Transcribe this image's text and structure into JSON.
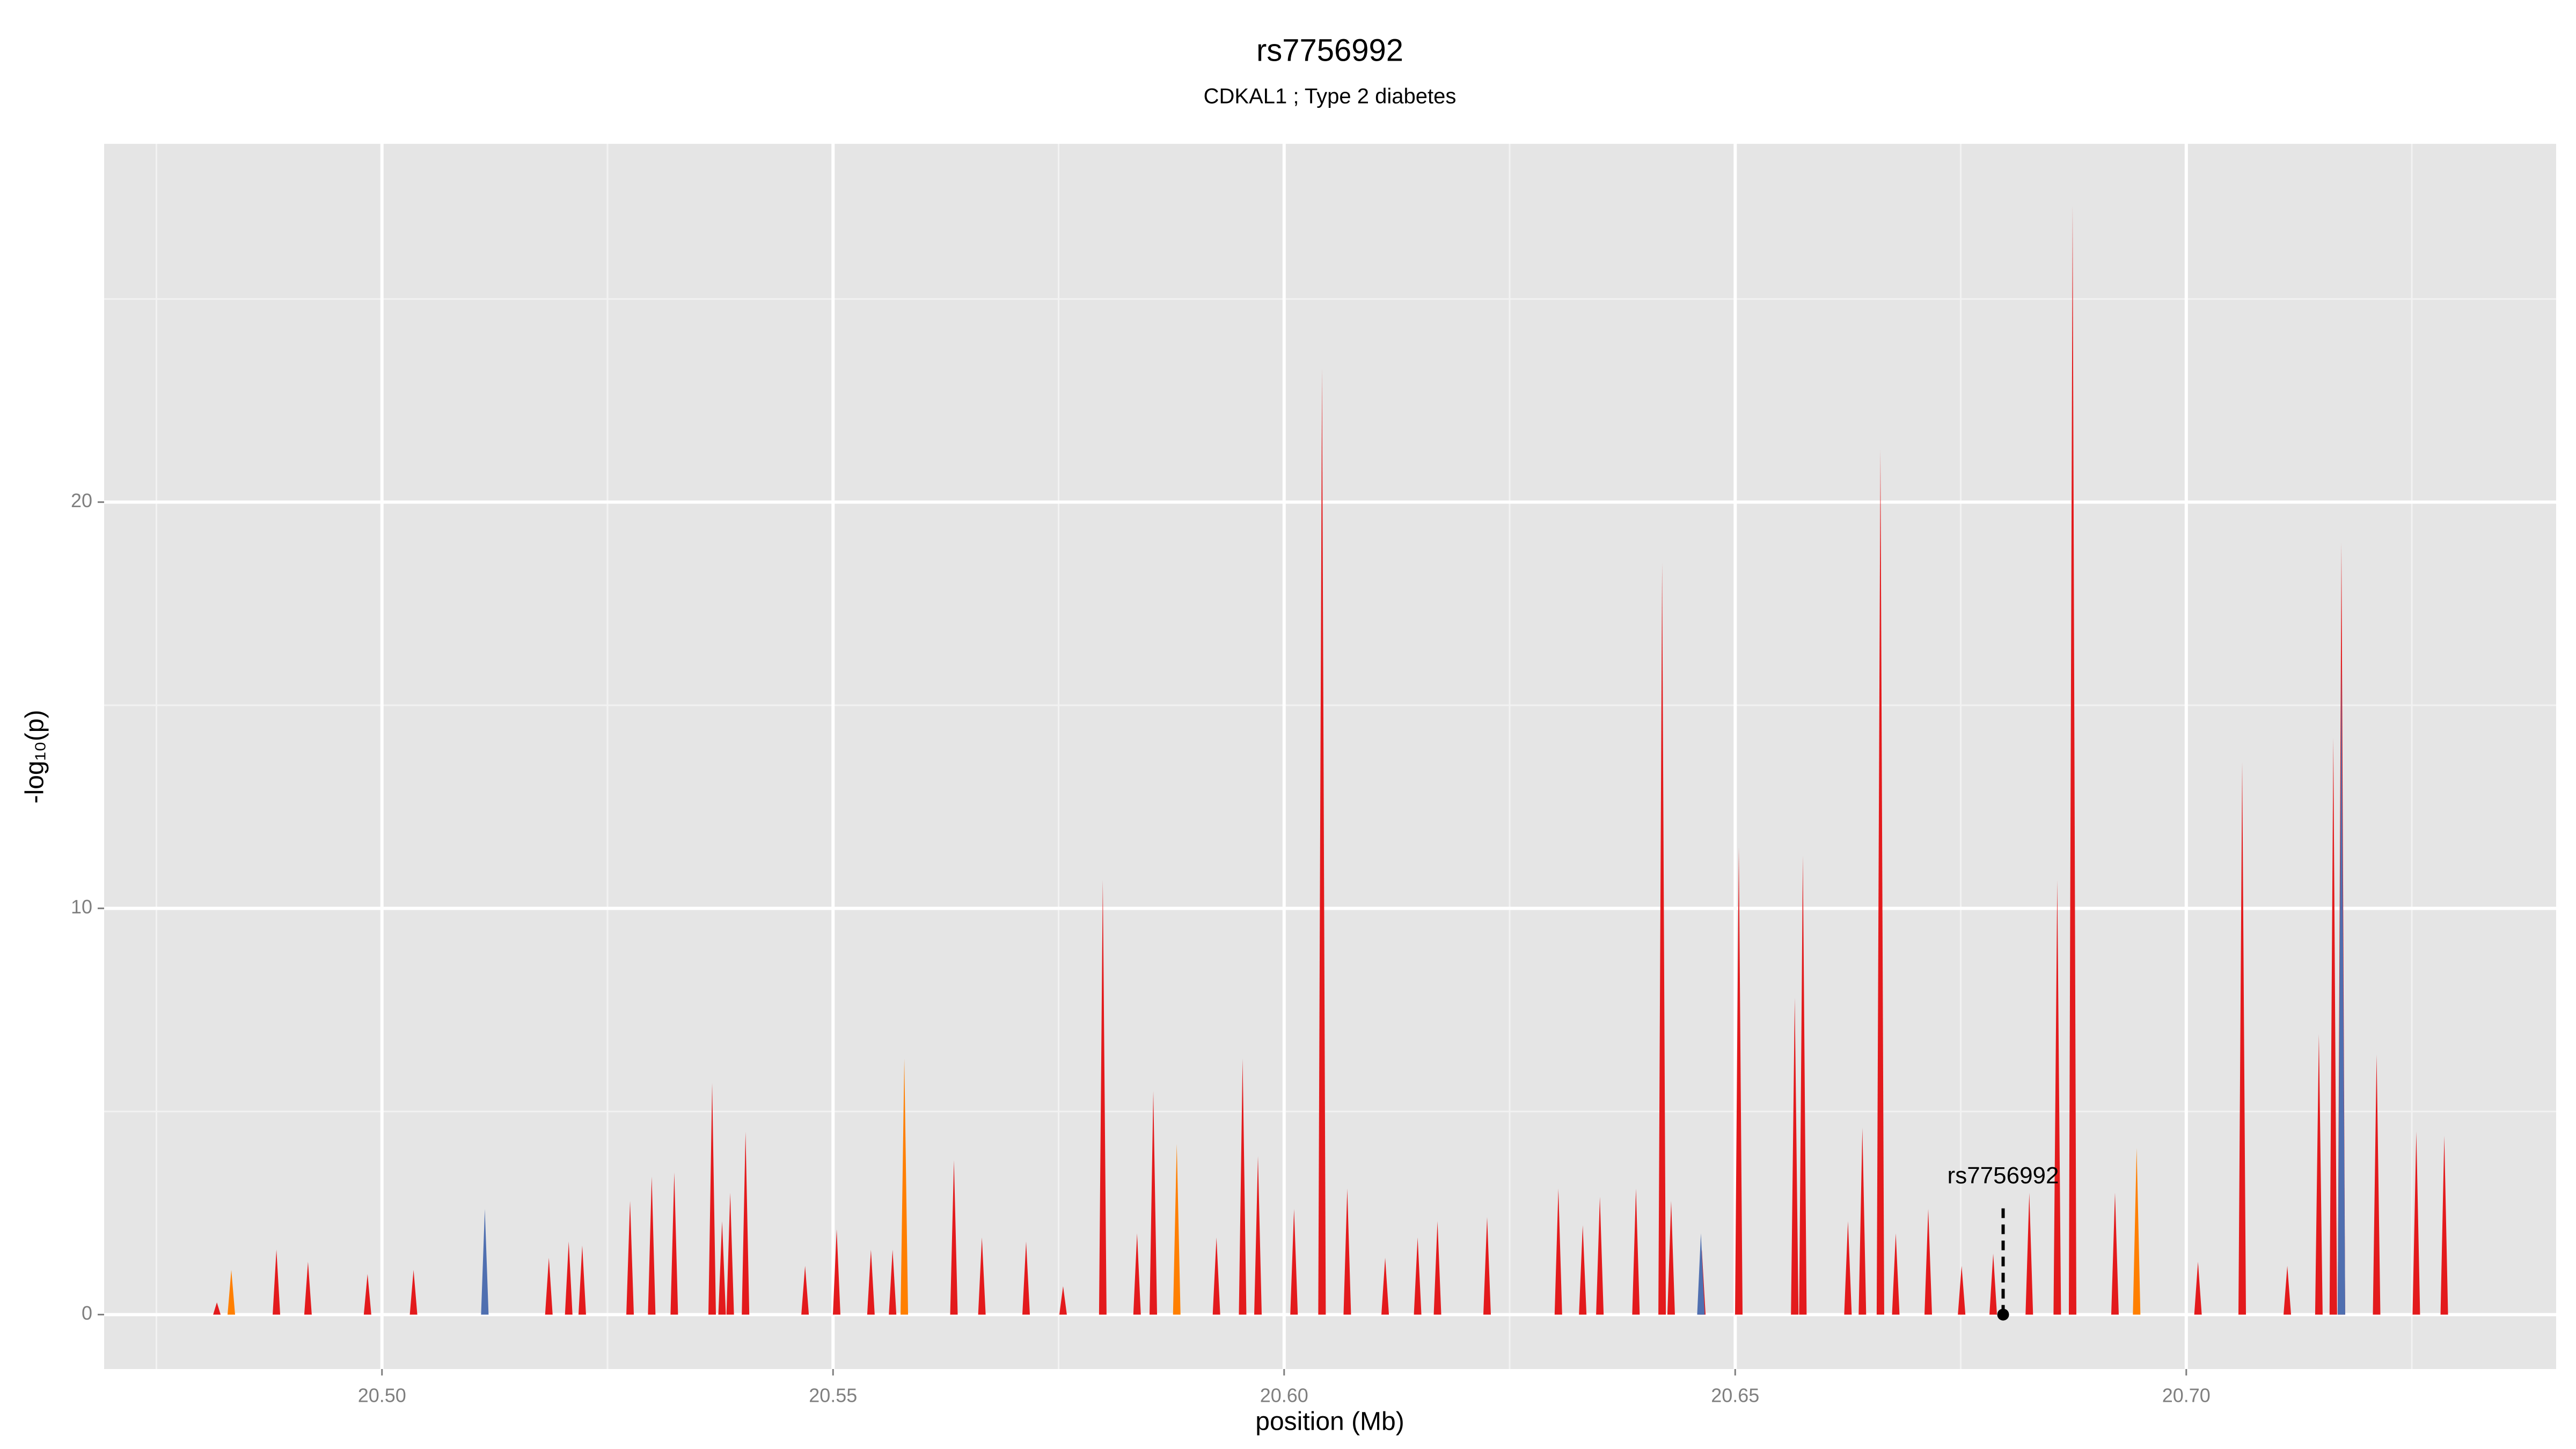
{
  "chart_data": {
    "type": "spike",
    "title": "rs7756992",
    "subtitle": "CDKAL1 ; Type 2 diabetes",
    "x_label": "position (Mb)",
    "y_label": "-log₁₀(p)",
    "xlim": [
      20.4692,
      20.741
    ],
    "ylim": [
      -1.34,
      28.82
    ],
    "xticks": [
      {
        "value": 20.5,
        "label": "20.50"
      },
      {
        "value": 20.55,
        "label": "20.55"
      },
      {
        "value": 20.6,
        "label": "20.60"
      },
      {
        "value": 20.65,
        "label": "20.65"
      },
      {
        "value": 20.7,
        "label": "20.70"
      }
    ],
    "yticks": [
      0,
      10,
      20
    ],
    "x_minor_ticks": [
      20.475,
      20.525,
      20.575,
      20.625,
      20.675,
      20.725
    ],
    "y_minor_ticks": [
      5,
      15,
      25
    ],
    "grid": true,
    "series": [
      {
        "name": "red",
        "color": "#e31a1c",
        "x": [
          20.4817,
          20.4883,
          20.4918,
          20.4984,
          20.5035,
          20.5185,
          20.5207,
          20.5222,
          20.5275,
          20.5299,
          20.5324,
          20.5366,
          20.5377,
          20.5386,
          20.5403,
          20.5469,
          20.5504,
          20.5542,
          20.5566,
          20.5634,
          20.5665,
          20.5714,
          20.5755,
          20.5799,
          20.5837,
          20.5855,
          20.5925,
          20.5954,
          20.5971,
          20.6011,
          20.6042,
          20.607,
          20.6112,
          20.6148,
          20.617,
          20.6225,
          20.6304,
          20.6331,
          20.635,
          20.639,
          20.6419,
          20.6429,
          20.6463,
          20.6504,
          20.6566,
          20.6575,
          20.6625,
          20.6641,
          20.6661,
          20.6678,
          20.6714,
          20.6751,
          20.6786,
          20.6826,
          20.6857,
          20.6874,
          20.6921,
          20.7013,
          20.7062,
          20.7112,
          20.7147,
          20.7163,
          20.7172,
          20.7211,
          20.7255,
          20.7286
        ],
        "values": [
          0.3,
          1.6,
          1.3,
          1.0,
          1.1,
          1.4,
          1.8,
          1.7,
          2.8,
          3.4,
          3.5,
          5.7,
          2.3,
          3.0,
          4.5,
          1.2,
          2.1,
          1.6,
          1.6,
          3.8,
          1.9,
          1.8,
          0.7,
          10.7,
          2.0,
          5.5,
          1.9,
          6.3,
          3.9,
          2.6,
          23.3,
          3.1,
          1.4,
          1.9,
          2.3,
          2.4,
          3.1,
          2.2,
          2.9,
          3.1,
          18.5,
          2.8,
          1.6,
          11.5,
          7.8,
          11.3,
          2.3,
          4.6,
          21.3,
          2.0,
          2.6,
          1.2,
          1.5,
          3.0,
          10.7,
          27.3,
          3.0,
          1.3,
          13.6,
          1.2,
          6.9,
          14.2,
          19.0,
          6.4,
          4.5,
          4.4
        ]
      },
      {
        "name": "orange",
        "color": "#ff7f00",
        "x": [
          20.4833,
          20.5579,
          20.5881,
          20.6945
        ],
        "values": [
          1.1,
          6.3,
          4.2,
          4.1
        ]
      },
      {
        "name": "blue",
        "color": "#4f6fb0",
        "x": [
          20.5114,
          20.6462,
          20.7172
        ],
        "values": [
          2.6,
          2.0,
          16.0
        ]
      }
    ],
    "annotation": {
      "text": "rs7756992",
      "x": 20.6797,
      "y": 0
    }
  }
}
